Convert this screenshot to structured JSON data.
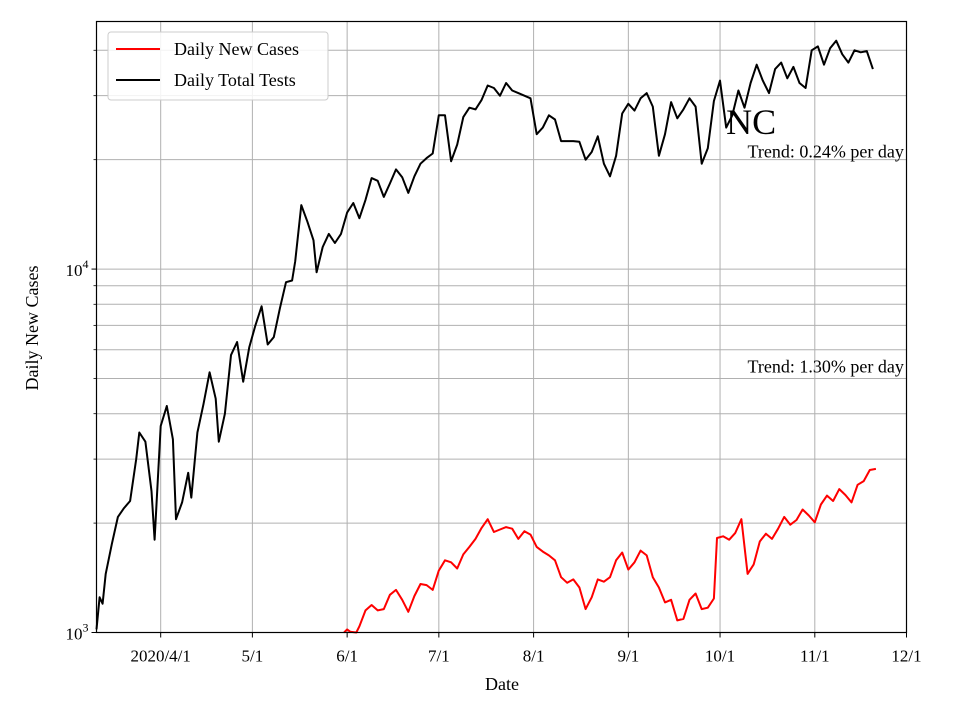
{
  "chart_data": {
    "type": "line",
    "title": "",
    "xlabel": "Date",
    "ylabel": "Daily New Cases",
    "y_scale": "log",
    "ylim": [
      1000,
      48000
    ],
    "xlim": [
      "2020-03-11",
      "2020-12-01"
    ],
    "grid": true,
    "legend_position": "top-left",
    "x_ticks": [
      {
        "date": "2020-04-01",
        "label": "2020/4/1"
      },
      {
        "date": "2020-05-01",
        "label": "5/1"
      },
      {
        "date": "2020-06-01",
        "label": "6/1"
      },
      {
        "date": "2020-07-01",
        "label": "7/1"
      },
      {
        "date": "2020-08-01",
        "label": "8/1"
      },
      {
        "date": "2020-09-01",
        "label": "9/1"
      },
      {
        "date": "2020-10-01",
        "label": "10/1"
      },
      {
        "date": "2020-11-01",
        "label": "11/1"
      },
      {
        "date": "2020-12-01",
        "label": "12/1"
      }
    ],
    "y_major_ticks": [
      {
        "value": 1000,
        "base": "10",
        "exp": "3"
      },
      {
        "value": 10000,
        "base": "10",
        "exp": "4"
      }
    ],
    "y_minor_ticks": [
      2000,
      3000,
      4000,
      5000,
      6000,
      7000,
      8000,
      9000,
      20000,
      30000,
      40000
    ],
    "annotations": [
      {
        "text": "NC",
        "date": "2020-10-03",
        "value": 23500,
        "style": "large"
      },
      {
        "text": "Trend: 0.24% per day",
        "date": "2020-10-10",
        "value": 20300,
        "style": "normal"
      },
      {
        "text": "Trend: 1.30% per day",
        "date": "2020-10-10",
        "value": 5200,
        "style": "normal"
      }
    ],
    "series": [
      {
        "name": "Daily New Cases",
        "color": "#ff0000",
        "points": [
          [
            "2020-05-31",
            980
          ],
          [
            "2020-06-01",
            1020
          ],
          [
            "2020-06-02",
            1005
          ],
          [
            "2020-06-04",
            985
          ],
          [
            "2020-06-05",
            1040
          ],
          [
            "2020-06-07",
            1150
          ],
          [
            "2020-06-09",
            1190
          ],
          [
            "2020-06-11",
            1150
          ],
          [
            "2020-06-13",
            1160
          ],
          [
            "2020-06-15",
            1270
          ],
          [
            "2020-06-17",
            1310
          ],
          [
            "2020-06-19",
            1230
          ],
          [
            "2020-06-21",
            1140
          ],
          [
            "2020-06-23",
            1260
          ],
          [
            "2020-06-25",
            1360
          ],
          [
            "2020-06-27",
            1350
          ],
          [
            "2020-06-29",
            1310
          ],
          [
            "2020-07-01",
            1480
          ],
          [
            "2020-07-03",
            1580
          ],
          [
            "2020-07-05",
            1560
          ],
          [
            "2020-07-07",
            1500
          ],
          [
            "2020-07-09",
            1640
          ],
          [
            "2020-07-11",
            1720
          ],
          [
            "2020-07-13",
            1810
          ],
          [
            "2020-07-15",
            1940
          ],
          [
            "2020-07-17",
            2050
          ],
          [
            "2020-07-19",
            1890
          ],
          [
            "2020-07-21",
            1920
          ],
          [
            "2020-07-23",
            1950
          ],
          [
            "2020-07-25",
            1930
          ],
          [
            "2020-07-27",
            1810
          ],
          [
            "2020-07-29",
            1900
          ],
          [
            "2020-07-31",
            1860
          ],
          [
            "2020-08-02",
            1720
          ],
          [
            "2020-08-04",
            1670
          ],
          [
            "2020-08-06",
            1630
          ],
          [
            "2020-08-08",
            1580
          ],
          [
            "2020-08-10",
            1420
          ],
          [
            "2020-08-12",
            1370
          ],
          [
            "2020-08-14",
            1400
          ],
          [
            "2020-08-16",
            1330
          ],
          [
            "2020-08-18",
            1160
          ],
          [
            "2020-08-20",
            1250
          ],
          [
            "2020-08-22",
            1400
          ],
          [
            "2020-08-24",
            1380
          ],
          [
            "2020-08-26",
            1420
          ],
          [
            "2020-08-28",
            1580
          ],
          [
            "2020-08-30",
            1660
          ],
          [
            "2020-09-01",
            1490
          ],
          [
            "2020-09-03",
            1560
          ],
          [
            "2020-09-05",
            1680
          ],
          [
            "2020-09-07",
            1630
          ],
          [
            "2020-09-09",
            1420
          ],
          [
            "2020-09-11",
            1330
          ],
          [
            "2020-09-13",
            1210
          ],
          [
            "2020-09-15",
            1230
          ],
          [
            "2020-09-17",
            1080
          ],
          [
            "2020-09-19",
            1090
          ],
          [
            "2020-09-21",
            1230
          ],
          [
            "2020-09-23",
            1280
          ],
          [
            "2020-09-25",
            1160
          ],
          [
            "2020-09-27",
            1170
          ],
          [
            "2020-09-29",
            1240
          ],
          [
            "2020-09-30",
            1820
          ],
          [
            "2020-10-02",
            1840
          ],
          [
            "2020-10-04",
            1800
          ],
          [
            "2020-10-06",
            1880
          ],
          [
            "2020-10-08",
            2050
          ],
          [
            "2020-10-10",
            1450
          ],
          [
            "2020-10-12",
            1540
          ],
          [
            "2020-10-14",
            1780
          ],
          [
            "2020-10-16",
            1870
          ],
          [
            "2020-10-18",
            1810
          ],
          [
            "2020-10-20",
            1930
          ],
          [
            "2020-10-22",
            2080
          ],
          [
            "2020-10-24",
            1980
          ],
          [
            "2020-10-26",
            2040
          ],
          [
            "2020-10-28",
            2180
          ],
          [
            "2020-10-30",
            2100
          ],
          [
            "2020-11-01",
            2010
          ],
          [
            "2020-11-03",
            2250
          ],
          [
            "2020-11-05",
            2380
          ],
          [
            "2020-11-07",
            2300
          ],
          [
            "2020-11-09",
            2480
          ],
          [
            "2020-11-11",
            2390
          ],
          [
            "2020-11-13",
            2280
          ],
          [
            "2020-11-15",
            2550
          ],
          [
            "2020-11-17",
            2610
          ],
          [
            "2020-11-19",
            2800
          ],
          [
            "2020-11-21",
            2820
          ]
        ]
      },
      {
        "name": "Daily Total Tests",
        "color": "#000000",
        "points": [
          [
            "2020-03-11",
            1020
          ],
          [
            "2020-03-12",
            1250
          ],
          [
            "2020-03-13",
            1200
          ],
          [
            "2020-03-14",
            1450
          ],
          [
            "2020-03-16",
            1750
          ],
          [
            "2020-03-18",
            2080
          ],
          [
            "2020-03-20",
            2200
          ],
          [
            "2020-03-22",
            2300
          ],
          [
            "2020-03-24",
            3000
          ],
          [
            "2020-03-25",
            3550
          ],
          [
            "2020-03-27",
            3350
          ],
          [
            "2020-03-29",
            2450
          ],
          [
            "2020-03-30",
            1800
          ],
          [
            "2020-04-01",
            3700
          ],
          [
            "2020-04-03",
            4200
          ],
          [
            "2020-04-05",
            3400
          ],
          [
            "2020-04-06",
            2050
          ],
          [
            "2020-04-08",
            2280
          ],
          [
            "2020-04-10",
            2750
          ],
          [
            "2020-04-11",
            2350
          ],
          [
            "2020-04-13",
            3550
          ],
          [
            "2020-04-15",
            4250
          ],
          [
            "2020-04-17",
            5200
          ],
          [
            "2020-04-19",
            4400
          ],
          [
            "2020-04-20",
            3350
          ],
          [
            "2020-04-22",
            4000
          ],
          [
            "2020-04-24",
            5800
          ],
          [
            "2020-04-26",
            6300
          ],
          [
            "2020-04-28",
            4900
          ],
          [
            "2020-04-30",
            6100
          ],
          [
            "2020-05-02",
            7000
          ],
          [
            "2020-05-04",
            7900
          ],
          [
            "2020-05-06",
            6200
          ],
          [
            "2020-05-08",
            6500
          ],
          [
            "2020-05-10",
            7800
          ],
          [
            "2020-05-12",
            9200
          ],
          [
            "2020-05-14",
            9300
          ],
          [
            "2020-05-15",
            10500
          ],
          [
            "2020-05-17",
            15000
          ],
          [
            "2020-05-19",
            13500
          ],
          [
            "2020-05-21",
            12000
          ],
          [
            "2020-05-22",
            9800
          ],
          [
            "2020-05-24",
            11500
          ],
          [
            "2020-05-26",
            12500
          ],
          [
            "2020-05-28",
            11800
          ],
          [
            "2020-05-30",
            12500
          ],
          [
            "2020-06-01",
            14300
          ],
          [
            "2020-06-03",
            15200
          ],
          [
            "2020-06-05",
            13800
          ],
          [
            "2020-06-07",
            15500
          ],
          [
            "2020-06-09",
            17800
          ],
          [
            "2020-06-11",
            17500
          ],
          [
            "2020-06-13",
            15800
          ],
          [
            "2020-06-15",
            17200
          ],
          [
            "2020-06-17",
            18800
          ],
          [
            "2020-06-19",
            17900
          ],
          [
            "2020-06-21",
            16200
          ],
          [
            "2020-06-23",
            18000
          ],
          [
            "2020-06-25",
            19500
          ],
          [
            "2020-06-27",
            20200
          ],
          [
            "2020-06-29",
            20800
          ],
          [
            "2020-07-01",
            26500
          ],
          [
            "2020-07-03",
            26500
          ],
          [
            "2020-07-05",
            19800
          ],
          [
            "2020-07-07",
            22000
          ],
          [
            "2020-07-09",
            26200
          ],
          [
            "2020-07-11",
            27800
          ],
          [
            "2020-07-13",
            27500
          ],
          [
            "2020-07-15",
            29200
          ],
          [
            "2020-07-17",
            32000
          ],
          [
            "2020-07-19",
            31500
          ],
          [
            "2020-07-21",
            30000
          ],
          [
            "2020-07-23",
            32500
          ],
          [
            "2020-07-25",
            31000
          ],
          [
            "2020-07-27",
            30500
          ],
          [
            "2020-07-29",
            30000
          ],
          [
            "2020-07-31",
            29500
          ],
          [
            "2020-08-02",
            23500
          ],
          [
            "2020-08-04",
            24500
          ],
          [
            "2020-08-06",
            26500
          ],
          [
            "2020-08-08",
            25800
          ],
          [
            "2020-08-10",
            22500
          ],
          [
            "2020-08-12",
            22500
          ],
          [
            "2020-08-14",
            22500
          ],
          [
            "2020-08-16",
            22400
          ],
          [
            "2020-08-18",
            20000
          ],
          [
            "2020-08-20",
            21000
          ],
          [
            "2020-08-22",
            23200
          ],
          [
            "2020-08-24",
            19500
          ],
          [
            "2020-08-26",
            18000
          ],
          [
            "2020-08-28",
            20500
          ],
          [
            "2020-08-30",
            26800
          ],
          [
            "2020-09-01",
            28500
          ],
          [
            "2020-09-03",
            27300
          ],
          [
            "2020-09-05",
            29500
          ],
          [
            "2020-09-07",
            30500
          ],
          [
            "2020-09-09",
            28000
          ],
          [
            "2020-09-11",
            20500
          ],
          [
            "2020-09-13",
            23500
          ],
          [
            "2020-09-15",
            28800
          ],
          [
            "2020-09-17",
            26000
          ],
          [
            "2020-09-19",
            27500
          ],
          [
            "2020-09-21",
            29500
          ],
          [
            "2020-09-23",
            28000
          ],
          [
            "2020-09-25",
            19500
          ],
          [
            "2020-09-27",
            21500
          ],
          [
            "2020-09-29",
            29000
          ],
          [
            "2020-10-01",
            33000
          ],
          [
            "2020-10-03",
            24500
          ],
          [
            "2020-10-05",
            26500
          ],
          [
            "2020-10-07",
            31000
          ],
          [
            "2020-10-09",
            27800
          ],
          [
            "2020-10-11",
            32500
          ],
          [
            "2020-10-13",
            36500
          ],
          [
            "2020-10-15",
            33000
          ],
          [
            "2020-10-17",
            30500
          ],
          [
            "2020-10-19",
            35500
          ],
          [
            "2020-10-21",
            37000
          ],
          [
            "2020-10-23",
            33500
          ],
          [
            "2020-10-25",
            36000
          ],
          [
            "2020-10-27",
            32500
          ],
          [
            "2020-10-29",
            31500
          ],
          [
            "2020-10-31",
            40000
          ],
          [
            "2020-11-02",
            41000
          ],
          [
            "2020-11-04",
            36500
          ],
          [
            "2020-11-06",
            40500
          ],
          [
            "2020-11-08",
            42500
          ],
          [
            "2020-11-10",
            39000
          ],
          [
            "2020-11-12",
            37000
          ],
          [
            "2020-11-14",
            40000
          ],
          [
            "2020-11-16",
            39500
          ],
          [
            "2020-11-18",
            39800
          ],
          [
            "2020-11-20",
            35500
          ]
        ]
      }
    ]
  }
}
